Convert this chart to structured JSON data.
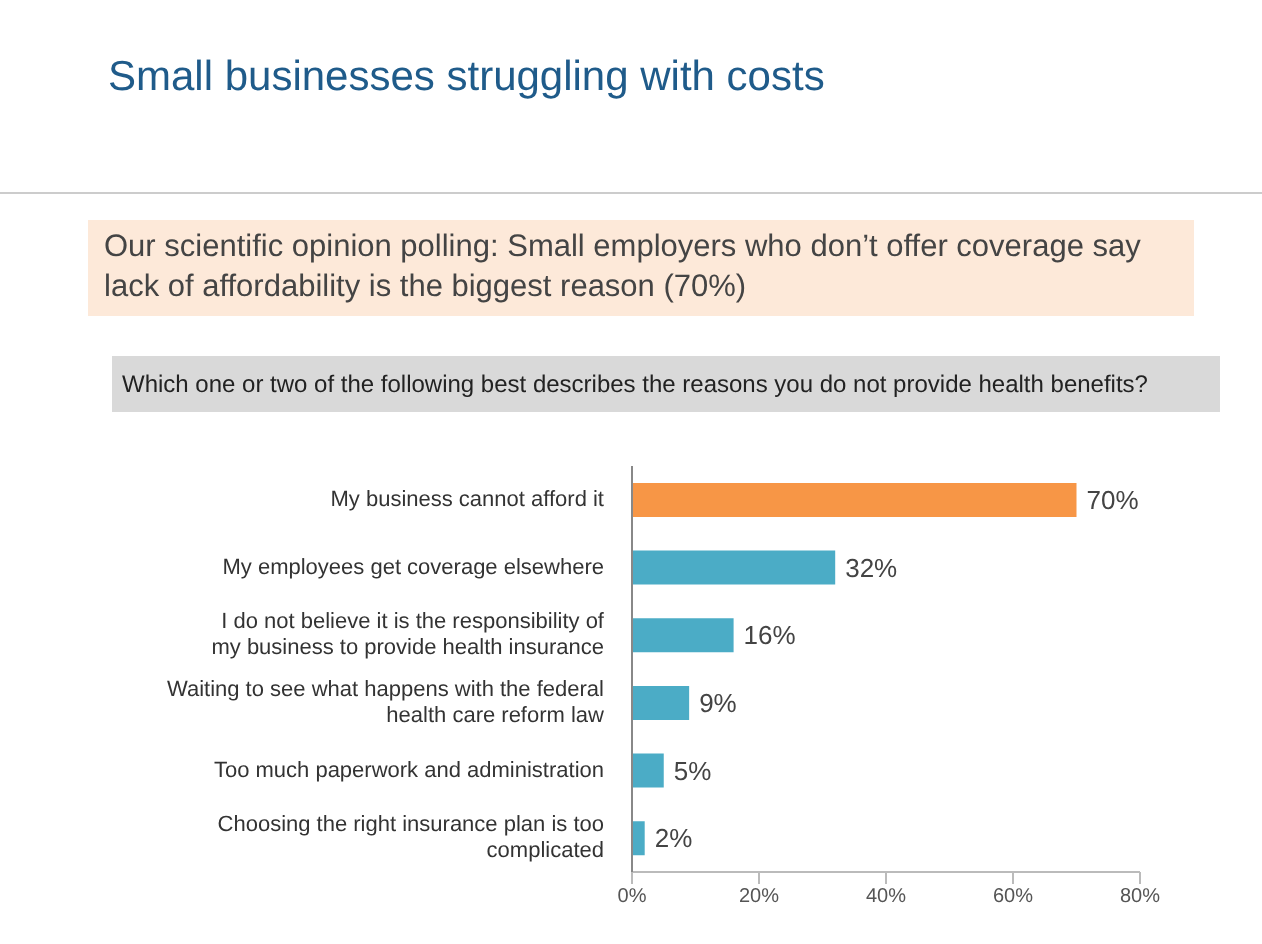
{
  "chart_data": {
    "type": "bar",
    "orientation": "horizontal",
    "title": "Small businesses struggling with costs",
    "subtitle": "Our scientific opinion polling: Small employers who don’t offer coverage say lack of affordability is the biggest reason (70%)",
    "annotations": [
      "Which one or two of the following best describes the reasons you do not provide health benefits?"
    ],
    "categories": [
      "My business cannot afford it",
      "My employees get coverage elsewhere",
      "I do not believe it is the responsibility of my business to provide health insurance",
      "Waiting to see what happens with the federal health care reform law",
      "Too much paperwork and administration",
      "Choosing the right insurance plan is too complicated"
    ],
    "values": [
      70,
      32,
      16,
      9,
      5,
      2
    ],
    "colors": [
      "#f79646",
      "#4bacc6",
      "#4bacc6",
      "#4bacc6",
      "#4bacc6",
      "#4bacc6"
    ],
    "value_labels": [
      "70%",
      "32%",
      "16%",
      "9%",
      "5%",
      "2%"
    ],
    "xlim": [
      0,
      80
    ],
    "xticks": [
      {
        "value": 0,
        "label": "0%"
      },
      {
        "value": 20,
        "label": "20%"
      },
      {
        "value": 40,
        "label": "40%"
      },
      {
        "value": 60,
        "label": "60%"
      },
      {
        "value": 80,
        "label": "80%"
      }
    ],
    "grid": false,
    "legend": false
  }
}
